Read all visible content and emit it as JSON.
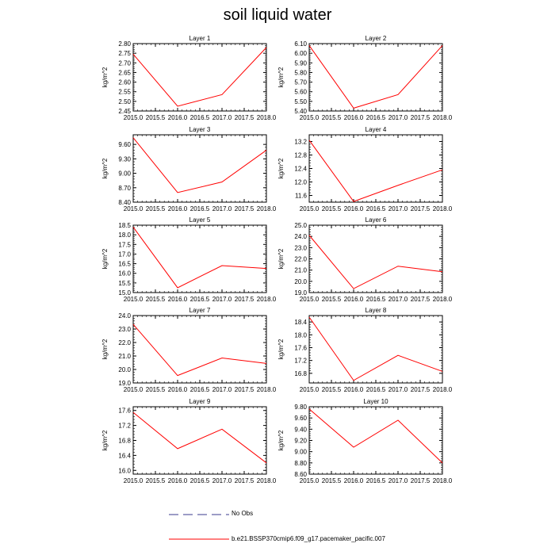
{
  "title": "soil liquid water",
  "colors": {
    "series": "#ff0000",
    "noobs": "#3a3a8c",
    "axis": "#000000"
  },
  "legend": {
    "no_obs_label": "No Obs",
    "model_label": "b.e21.BSSP370cmip6.f09_g17.pacemaker_pacific.007"
  },
  "chart_data": [
    {
      "type": "line",
      "title": "Layer 1",
      "xlabel": "",
      "ylabel": "kg/m^2",
      "x": [
        2015,
        2016,
        2017,
        2018
      ],
      "xlim": [
        2015,
        2018
      ],
      "xticks": [
        2015,
        2015.5,
        2016,
        2016.5,
        2017,
        2017.5,
        2018
      ],
      "ylim": [
        2.45,
        2.8
      ],
      "yticks": [
        2.45,
        2.5,
        2.55,
        2.6,
        2.65,
        2.7,
        2.75,
        2.8
      ],
      "ydec": 2,
      "series": [
        {
          "name": "b.e21.BSSP370cmip6.f09_g17.pacemaker_pacific.007",
          "values": [
            2.745,
            2.475,
            2.535,
            2.78
          ]
        }
      ]
    },
    {
      "type": "line",
      "title": "Layer 2",
      "xlabel": "",
      "ylabel": "kg/m^2",
      "x": [
        2015,
        2016,
        2017,
        2018
      ],
      "xlim": [
        2015,
        2018
      ],
      "xticks": [
        2015,
        2015.5,
        2016,
        2016.5,
        2017,
        2017.5,
        2018
      ],
      "ylim": [
        5.4,
        6.1
      ],
      "yticks": [
        5.4,
        5.5,
        5.6,
        5.7,
        5.8,
        5.9,
        6.0,
        6.1
      ],
      "ydec": 2,
      "series": [
        {
          "name": "b.e21.BSSP370cmip6.f09_g17.pacemaker_pacific.007",
          "values": [
            6.08,
            5.43,
            5.57,
            6.08
          ]
        }
      ]
    },
    {
      "type": "line",
      "title": "Layer 3",
      "xlabel": "",
      "ylabel": "kg/m^2",
      "x": [
        2015,
        2016,
        2017,
        2018
      ],
      "xlim": [
        2015,
        2018
      ],
      "xticks": [
        2015,
        2015.5,
        2016,
        2016.5,
        2017,
        2017.5,
        2018
      ],
      "ylim": [
        8.4,
        9.8
      ],
      "yticks": [
        8.4,
        8.7,
        9.0,
        9.3,
        9.6
      ],
      "ydec": 2,
      "series": [
        {
          "name": "b.e21.BSSP370cmip6.f09_g17.pacemaker_pacific.007",
          "values": [
            9.74,
            8.6,
            8.82,
            9.48
          ]
        }
      ]
    },
    {
      "type": "line",
      "title": "Layer 4",
      "xlabel": "",
      "ylabel": "kg/m^2",
      "x": [
        2015,
        2016,
        2017,
        2018
      ],
      "xlim": [
        2015,
        2018
      ],
      "xticks": [
        2015,
        2015.5,
        2016,
        2016.5,
        2017,
        2017.5,
        2018
      ],
      "ylim": [
        11.4,
        13.4
      ],
      "yticks": [
        11.6,
        12.0,
        12.4,
        12.8,
        13.2
      ],
      "ydec": 1,
      "series": [
        {
          "name": "b.e21.BSSP370cmip6.f09_g17.pacemaker_pacific.007",
          "values": [
            13.24,
            11.42,
            11.9,
            12.36
          ]
        }
      ]
    },
    {
      "type": "line",
      "title": "Layer 5",
      "xlabel": "",
      "ylabel": "kg/m^2",
      "x": [
        2015,
        2016,
        2017,
        2018
      ],
      "xlim": [
        2015,
        2018
      ],
      "xticks": [
        2015,
        2015.5,
        2016,
        2016.5,
        2017,
        2017.5,
        2018
      ],
      "ylim": [
        15.0,
        18.5
      ],
      "yticks": [
        15.0,
        15.5,
        16.0,
        16.5,
        17.0,
        17.5,
        18.0,
        18.5
      ],
      "ydec": 1,
      "series": [
        {
          "name": "b.e21.BSSP370cmip6.f09_g17.pacemaker_pacific.007",
          "values": [
            18.4,
            15.25,
            16.4,
            16.25
          ]
        }
      ]
    },
    {
      "type": "line",
      "title": "Layer 6",
      "xlabel": "",
      "ylabel": "kg/m^2",
      "x": [
        2015,
        2016,
        2017,
        2018
      ],
      "xlim": [
        2015,
        2018
      ],
      "xticks": [
        2015,
        2015.5,
        2016,
        2016.5,
        2017,
        2017.5,
        2018
      ],
      "ylim": [
        19.0,
        25.0
      ],
      "yticks": [
        19.0,
        20.0,
        21.0,
        22.0,
        23.0,
        24.0,
        25.0
      ],
      "ydec": 1,
      "series": [
        {
          "name": "b.e21.BSSP370cmip6.f09_g17.pacemaker_pacific.007",
          "values": [
            24.1,
            19.35,
            21.35,
            20.85
          ]
        }
      ]
    },
    {
      "type": "line",
      "title": "Layer 7",
      "xlabel": "",
      "ylabel": "kg/m^2",
      "x": [
        2015,
        2016,
        2017,
        2018
      ],
      "xlim": [
        2015,
        2018
      ],
      "xticks": [
        2015,
        2015.5,
        2016,
        2016.5,
        2017,
        2017.5,
        2018
      ],
      "ylim": [
        19.0,
        24.0
      ],
      "yticks": [
        19.0,
        20.0,
        21.0,
        22.0,
        23.0,
        24.0
      ],
      "ydec": 1,
      "series": [
        {
          "name": "b.e21.BSSP370cmip6.f09_g17.pacemaker_pacific.007",
          "values": [
            23.35,
            19.55,
            20.85,
            20.45
          ]
        }
      ]
    },
    {
      "type": "line",
      "title": "Layer 8",
      "xlabel": "",
      "ylabel": "kg/m^2",
      "x": [
        2015,
        2016,
        2017,
        2018
      ],
      "xlim": [
        2015,
        2018
      ],
      "xticks": [
        2015,
        2015.5,
        2016,
        2016.5,
        2017,
        2017.5,
        2018
      ],
      "ylim": [
        16.5,
        18.6
      ],
      "yticks": [
        16.8,
        17.2,
        17.6,
        18.0,
        18.4
      ],
      "ydec": 1,
      "series": [
        {
          "name": "b.e21.BSSP370cmip6.f09_g17.pacemaker_pacific.007",
          "values": [
            18.55,
            16.58,
            17.36,
            16.86
          ]
        }
      ]
    },
    {
      "type": "line",
      "title": "Layer 9",
      "xlabel": "",
      "ylabel": "kg/m^2",
      "x": [
        2015,
        2016,
        2017,
        2018
      ],
      "xlim": [
        2015,
        2018
      ],
      "xticks": [
        2015,
        2015.5,
        2016,
        2016.5,
        2017,
        2017.5,
        2018
      ],
      "ylim": [
        15.9,
        17.7
      ],
      "yticks": [
        16.0,
        16.4,
        16.8,
        17.2,
        17.6
      ],
      "ydec": 1,
      "series": [
        {
          "name": "b.e21.BSSP370cmip6.f09_g17.pacemaker_pacific.007",
          "values": [
            17.55,
            16.58,
            17.1,
            16.2
          ]
        }
      ]
    },
    {
      "type": "line",
      "title": "Layer 10",
      "xlabel": "",
      "ylabel": "kg/m^2",
      "x": [
        2015,
        2016,
        2017,
        2018
      ],
      "xlim": [
        2015,
        2018
      ],
      "xticks": [
        2015,
        2015.5,
        2016,
        2016.5,
        2017,
        2017.5,
        2018
      ],
      "ylim": [
        8.6,
        9.8
      ],
      "yticks": [
        8.6,
        8.8,
        9.0,
        9.2,
        9.4,
        9.6,
        9.8
      ],
      "ydec": 2,
      "series": [
        {
          "name": "b.e21.BSSP370cmip6.f09_g17.pacemaker_pacific.007",
          "values": [
            9.76,
            9.08,
            9.56,
            8.8
          ]
        }
      ]
    }
  ]
}
